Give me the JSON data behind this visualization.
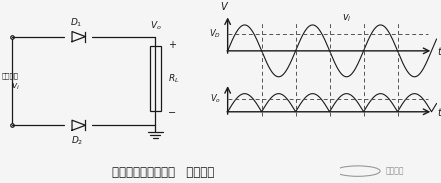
{
  "bg_color": "#f5f5f5",
  "title_text": "二极管全波整流电路   仿真演示",
  "title_fontsize": 9,
  "logo_text": "电源联盟",
  "line_color": "#1a1a1a",
  "dashed_color": "#555555",
  "label_color": "#111111"
}
